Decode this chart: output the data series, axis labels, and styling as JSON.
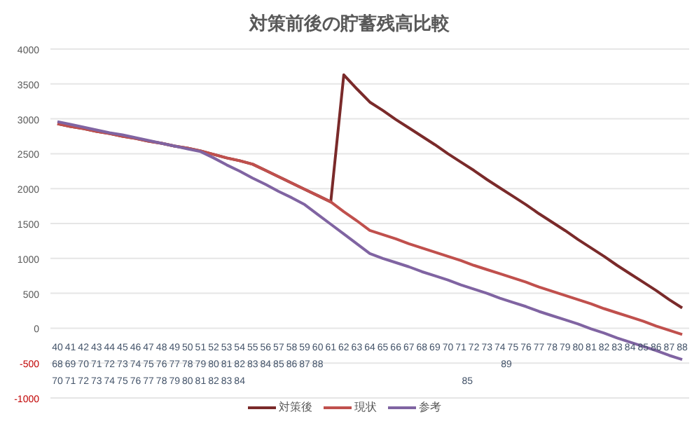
{
  "chart_data": {
    "type": "line",
    "title": "対策前後の貯蓄残高比較",
    "categories": [
      "40\n68\n70",
      "41\n69\n71",
      "42\n70\n72",
      "43\n71\n73",
      "44\n72\n74",
      "45\n73\n75",
      "46\n74\n76",
      "47\n75\n77",
      "48\n76\n78",
      "49\n77\n79",
      "50\n78\n80",
      "51\n79\n81",
      "52\n80\n82",
      "53\n81\n83",
      "54\n82\n84",
      "55\n83",
      "56\n84",
      "57\n85",
      "58\n86",
      "59\n87",
      "60\n88",
      "61",
      "62",
      "63",
      "64",
      "65",
      "66",
      "67",
      "68",
      "69",
      "70",
      "71",
      "72",
      "73",
      "74",
      "75",
      "76",
      "77",
      "78",
      "79",
      "80",
      "81",
      "82",
      "83",
      "84",
      "85",
      "86",
      "87",
      "88"
    ],
    "series": [
      {
        "name": "対策後",
        "color": "#7a2a2a",
        "values": [
          2930,
          2890,
          2860,
          2820,
          2790,
          2750,
          2720,
          2680,
          2650,
          2610,
          2580,
          2540,
          2490,
          2440,
          2400,
          2350,
          2260,
          2170,
          2080,
          1990,
          1900,
          1810,
          3630,
          3430,
          3240,
          3120,
          2990,
          2870,
          2750,
          2630,
          2500,
          2380,
          2260,
          2130,
          2010,
          1890,
          1770,
          1640,
          1520,
          1400,
          1270,
          1150,
          1030,
          900,
          780,
          660,
          540,
          410,
          290
        ]
      },
      {
        "name": "現状",
        "color": "#c0504d",
        "values": [
          2930,
          2890,
          2860,
          2820,
          2790,
          2750,
          2720,
          2680,
          2650,
          2610,
          2580,
          2540,
          2490,
          2440,
          2400,
          2350,
          2260,
          2170,
          2080,
          1990,
          1900,
          1810,
          1670,
          1540,
          1400,
          1340,
          1280,
          1210,
          1150,
          1090,
          1030,
          970,
          900,
          840,
          780,
          720,
          660,
          590,
          530,
          470,
          410,
          350,
          280,
          220,
          160,
          100,
          30,
          -30,
          -90
        ]
      },
      {
        "name": "参考",
        "color": "#8064a2",
        "values": [
          2960,
          2920,
          2880,
          2840,
          2800,
          2770,
          2730,
          2690,
          2650,
          2610,
          2570,
          2530,
          2440,
          2340,
          2250,
          2150,
          2060,
          1960,
          1870,
          1770,
          1630,
          1490,
          1350,
          1210,
          1070,
          1000,
          940,
          880,
          810,
          750,
          690,
          620,
          560,
          500,
          430,
          370,
          310,
          240,
          180,
          120,
          60,
          -10,
          -70,
          -140,
          -200,
          -260,
          -320,
          -390,
          -450
        ]
      }
    ],
    "annotations": [
      "89",
      "85"
    ],
    "ylim": [
      -1000,
      4000
    ],
    "yticks": [
      -1000,
      -500,
      0,
      500,
      1000,
      1500,
      2000,
      2500,
      3000,
      3500,
      4000
    ],
    "grid": "y",
    "legend": "bottom",
    "marker": "none",
    "line_style": "solid"
  }
}
